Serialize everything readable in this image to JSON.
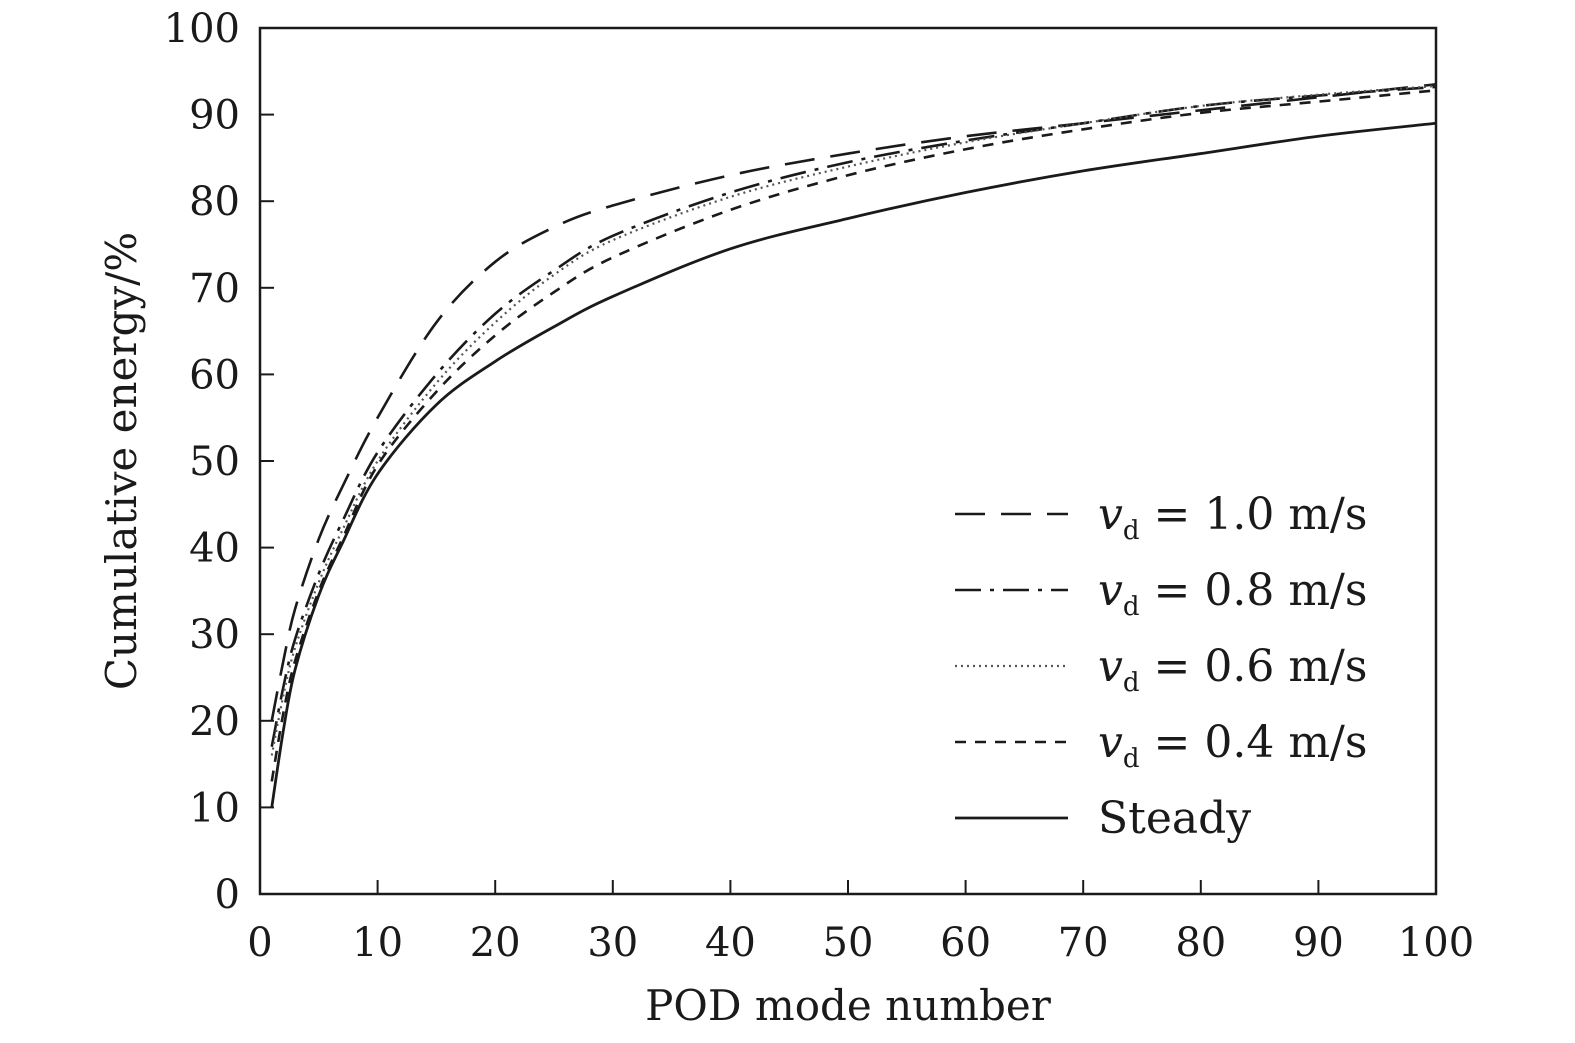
{
  "chart_data": {
    "type": "line",
    "title": "",
    "xlabel": "POD mode number",
    "ylabel": "Cumulative energy/%",
    "xlim": [
      0,
      100
    ],
    "ylim": [
      0,
      100
    ],
    "xticks": [
      0,
      10,
      20,
      30,
      40,
      50,
      60,
      70,
      80,
      90,
      100
    ],
    "yticks": [
      0,
      10,
      20,
      30,
      40,
      50,
      60,
      70,
      80,
      90,
      100
    ],
    "grid": false,
    "legend_position": "lower-right",
    "x": [
      1,
      2,
      3,
      5,
      7,
      10,
      15,
      20,
      25,
      30,
      40,
      50,
      60,
      70,
      80,
      90,
      100
    ],
    "series": [
      {
        "name": "v_d = 1.0 m/s",
        "legend": {
          "symbol": "v",
          "subscript": "d",
          "rest": " = 1.0 m/s"
        },
        "line_style": "long-dash",
        "values": [
          20,
          27,
          33,
          41,
          47,
          55,
          66,
          73,
          77,
          79.5,
          83,
          85.5,
          87.5,
          89,
          90.5,
          92,
          93.5
        ]
      },
      {
        "name": "v_d = 0.8 m/s",
        "legend": {
          "symbol": "v",
          "subscript": "d",
          "rest": " = 0.8 m/s"
        },
        "line_style": "dash-dot",
        "values": [
          17,
          24,
          29.5,
          37,
          43,
          51,
          60,
          67,
          72,
          76,
          81,
          84.5,
          87,
          89,
          91,
          92.2,
          93.2
        ]
      },
      {
        "name": "v_d = 0.6 m/s",
        "legend": {
          "symbol": "v",
          "subscript": "d",
          "rest": " = 0.6 m/s"
        },
        "line_style": "dotted",
        "values": [
          16,
          23,
          28.5,
          36,
          42,
          50,
          59,
          66,
          71.5,
          75.5,
          80.5,
          84,
          86.8,
          89,
          91,
          92.3,
          93.3
        ]
      },
      {
        "name": "v_d = 0.4 m/s",
        "legend": {
          "symbol": "v",
          "subscript": "d",
          "rest": " = 0.4 m/s"
        },
        "line_style": "short-dash",
        "values": [
          13,
          21,
          27,
          35,
          41,
          49.5,
          58,
          64.5,
          69.5,
          73.5,
          79,
          83,
          86,
          88.3,
          90.2,
          91.5,
          92.8
        ]
      },
      {
        "name": "Steady",
        "legend": {
          "symbol": "",
          "subscript": "",
          "rest": "Steady"
        },
        "line_style": "solid",
        "values": [
          10,
          19,
          26,
          34.5,
          40.5,
          48.5,
          56.5,
          61.5,
          65.5,
          69,
          74.5,
          78,
          81,
          83.5,
          85.5,
          87.5,
          89
        ]
      }
    ]
  }
}
